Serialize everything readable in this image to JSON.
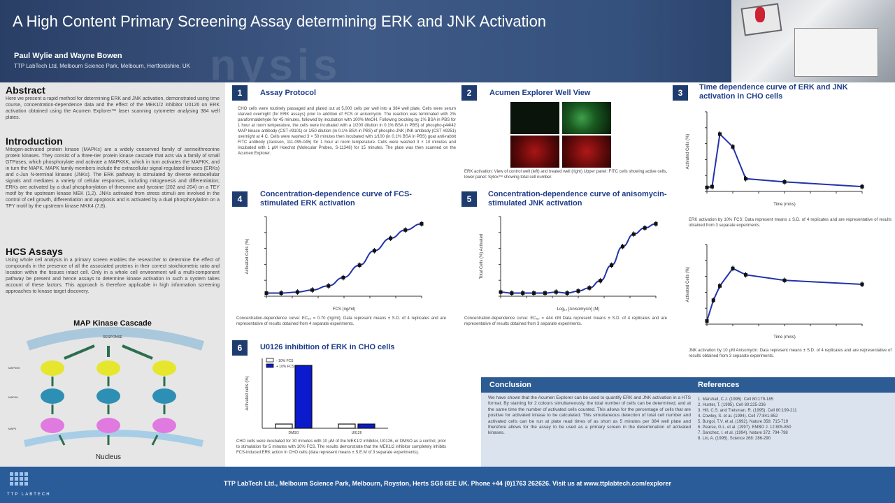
{
  "header": {
    "title": "A High Content Primary Screening Assay determining ERK and JNK Activation",
    "authors": "Paul Wylie and Wayne Bowen",
    "affiliation": "TTP LabTech Ltd, Melbourn Science Park, Melbourn, Hertfordshire, UK",
    "watermark": "nysis"
  },
  "left": {
    "abstract_title": "Abstract",
    "abstract_text": "Here we present a rapid method for determining ERK and JNK activation, demonstrated using time course, concentration-dependence data and the effect of the MEK1/2 inhibitor U0126 on ERK activation obtained using the Acumen Explorer™ laser scanning cytometer analysing 384 well plates.",
    "intro_title": "Introduction",
    "intro_text": "Mitogen-activated protein kinase (MAPKs) are a widely conserved family of serine/threonine protein kinases. They consist of a three-tier protein kinase cascade that acts via a family of small GTPases, which phosphorylate and activate a MAPKKK, which in turn activates the MAPKK, and in turn the MAPK. MAPK family members include the extracellular signal-regulated kinases (ERKs) and c-Jun N-terminal kinases (JNKs). The ERK pathway is stimulated by diverse extracellular signals and mediates a variety of cellular responses, including mitogenesis and differentiation; ERKs are activated by a dual phosphorylation of threonine and tyrosine (202 and 204) on a TEY motif by the upstream kinase MEK (1,2). JNKs activated from stress stimuli are involved in the control of cell growth, differentiation and apoptosis and is activated by a dual phosphorylation on a TPY motif by the upstream kinase MKK4 (7,8).",
    "hcs_title": "HCS Assays",
    "hcs_text": "Using whole cell analysis in a primary screen enables the researcher to determine the effect of compounds in the presence of all the associated proteins in their correct stoichiometric ratio and location within the tissues intact cell. Only in a whole cell environment will a multi-component pathway be present and hence assays to determine kinase activation in such a system takes account of these factors. This approach is therefore applicable in high information screening approaches to kinase target discovery.",
    "mapk_title": "MAP Kinase Cascade",
    "mapk_labels": [
      "RESPONSE",
      "MAPKKK",
      "MAPKK",
      "MAPK",
      "Nucleus"
    ]
  },
  "panels": {
    "p1": {
      "num": "1",
      "title": "Assay Protocol",
      "text": "CHO cells were routinely passaged and plated out at 5,000 cells per well into a 384 well plate. Cells were serum starved overnight (for ERK assays) prior to addition of FCS or anisomycin. The reaction was terminated with 2% paraformaldehyde for 45 minutes, followed by incubation with 100% MeOH. Following blocking by 1% BSA in PBS for 1 hour at room temperature, the cells were incubated with a 1/200 dilution in 0.1% BSA in PBS) of phospho-p44/42 MAP kinase antibody (CST #9101) or 1/50 dilution (in 0.1% BSA in PBS) of phospho-JNK (INK antibody (CST #9251) overnight at 4 C. Cells were washed 3 × 50 minutes then incubated with 1/100 (in 0.1% BSA in PBS) goat anti-rabbit FITC antibody (Jackson, 111-095-045) for 1 hour at room temperature. Cells were washed 3 × 10 minutes and incubated with 1 μM Hoechst (Molecular Probes, S-11348) for 15 minutes. The plate was then scanned on the Acumen Explorer."
    },
    "p2": {
      "num": "2",
      "title": "Acumen Explorer Well View",
      "caption": "ERK activation: View of control well (left) and treated well (right) Upper panel: FITC cells showing active cells, lower panel: Sytox™ showing total cell number."
    },
    "p3": {
      "num": "3",
      "title": "Time dependence curve of ERK and JNK activation in CHO cells",
      "caption_erk": "ERK activation by 10% FCS: Data represent means ± S.D. of 4 replicates and are representative of results obtained from 3 separate experiments.",
      "caption_jnk": "JNK activation by 10 μM Anisomycin: Data represent means ± S.D. of 4 replicates and are representative of results obtained from 3 separate experiments."
    },
    "p4": {
      "num": "4",
      "title": "Concentration-dependence curve of FCS-stimulated ERK activation",
      "caption": "Concentration-dependence curve: EC₅₀ = 0.70 (ng/ml); Data represent means ± S.D. of 4 replicates and are representative of results obtained from 4 separate experiments."
    },
    "p5": {
      "num": "5",
      "title": "Concentration-dependence curve of anisomycin-stimulated JNK activation",
      "caption": "Concentration-dependence curve: EC₅₀ = 444 nM Data represent means ± S.D. of 4 replicates and are representative of results obtained from 3 separate experiments."
    },
    "p6": {
      "num": "6",
      "title": "U0126 inhibition of ERK in CHO cells",
      "caption": "CHO cells were incubated for 30 minutes with 10 μM of the MEK1/2 inhibitor, U0126, or DMSO as a control, prior to stimulation for 5 minutes with 10% FCS. The results demonstrate that the MEK1/2 inhibitor completely inhibits FCS-induced ERK action in CHO cells (data represent means ± S.E.M of 3 separate experiments)."
    }
  },
  "conclusion": {
    "title": "Conclusion",
    "text": "We have shown that the Acumen Explorer can be used to quantify ERK and JNK activation in a HTS format. By staining for 2 colours simultaneously, the total number of cells can be determined, and at the same time the number of activated cells counted. This allows for the percentage of cells that are positive for activated kinase to be calculated. This simultaneous detection of total cell number and activated cells can be run at plate read times of as short as 5 minutes per 384 well plate and therefore allows for the assay to be used as a primary screen in the determination of activated kinases.",
    "refs_title": "References",
    "refs": [
      "1. Marshall, C.J. (1995). Cell 80:179-185",
      "2. Hunter, T. (1995). Cell 80:225-236",
      "3. Hill, C.S. and Treisman, R. (1995). Cell 80:199-211",
      "4. Cowley, S. et al. (1994). Cell 77:841-852",
      "5. Burgoi, T.V. et al. (1992). Nature 358: 715-719",
      "6. Pearse, G.L. et al. (1997). EMBO J. 12:805-850",
      "7. Sanchez, I. et al. (1994). Nature 372: 794-798",
      "8. Lin, A. (1995). Science 268: 286-290"
    ]
  },
  "footer": {
    "text": "TTP LabTech Ltd., Melbourn Science Park, Melbourn, Royston, Herts SG8 6EE UK.   Phone +44 (0)1763 262626.   Visit us at www.ttplabtech.com/explorer",
    "logo_text": "TTP LABTECH"
  },
  "chart_data": [
    {
      "id": "erk-time",
      "type": "line",
      "title": "",
      "xlabel": "Time (mins)",
      "ylabel": "Activated Cells (%)",
      "x": [
        0,
        2,
        5,
        10,
        15,
        30,
        60
      ],
      "series": [
        {
          "values": [
            5,
            6,
            72,
            56,
            16,
            12,
            6
          ]
        }
      ],
      "xlim": [
        0,
        60
      ],
      "ylim": [
        0,
        100
      ],
      "color": "#2233aa"
    },
    {
      "id": "jnk-time",
      "type": "line",
      "title": "",
      "xlabel": "Time (mins)",
      "ylabel": "Activated Cells (%)",
      "x": [
        0,
        5,
        10,
        20,
        30,
        60,
        120
      ],
      "series": [
        {
          "values": [
            4,
            30,
            48,
            70,
            62,
            55,
            50
          ]
        }
      ],
      "xlim": [
        0,
        120
      ],
      "ylim": [
        0,
        100
      ],
      "color": "#2233aa"
    },
    {
      "id": "erk-conc",
      "type": "scatter",
      "title": "",
      "xlabel": "FCS (ng/ml)",
      "ylabel": "Activated Cells (%)",
      "x": [
        0.001,
        0.003,
        0.01,
        0.03,
        0.1,
        0.3,
        1,
        3,
        10,
        30,
        100
      ],
      "series": [
        {
          "values": [
            3,
            3,
            4,
            6,
            10,
            18,
            30,
            44,
            56,
            64,
            70
          ]
        }
      ],
      "color": "#2233aa"
    },
    {
      "id": "jnk-conc",
      "type": "scatter",
      "title": "",
      "xlabel": "Log₁₀ [Anisomycin] (M)",
      "ylabel": "Total Cells (%) Activated",
      "x": [
        -12,
        -11.5,
        -11,
        -10.5,
        -10,
        -9.5,
        -9,
        -8.5,
        -8,
        -7.5,
        -7,
        -6.5,
        -6,
        -5.5,
        -5
      ],
      "series": [
        {
          "values": [
            4,
            3,
            3,
            3,
            3,
            4,
            3,
            5,
            8,
            15,
            30,
            48,
            60,
            66,
            70
          ]
        }
      ],
      "color": "#2233aa"
    },
    {
      "id": "u0126",
      "type": "bar",
      "title": "",
      "ylabel": "Activated cells (%)",
      "categories": [
        "DMSO",
        "U0126"
      ],
      "series": [
        {
          "name": "- 10% FCS",
          "values": [
            6,
            6
          ]
        },
        {
          "name": "+ 10% FCS",
          "values": [
            90,
            6
          ]
        }
      ],
      "colors": [
        "#ffffff",
        "#0a1acc"
      ],
      "ylim": [
        0,
        100
      ]
    }
  ]
}
